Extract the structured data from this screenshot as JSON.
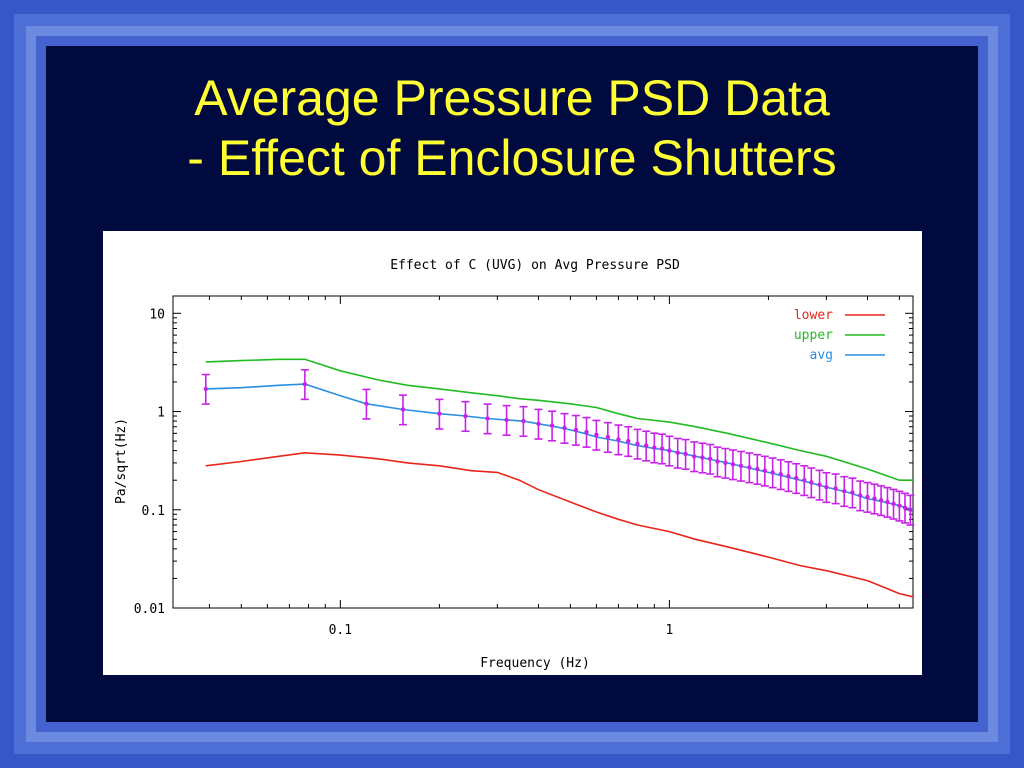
{
  "slide": {
    "title_line1": "Average Pressure PSD Data",
    "title_line2": "- Effect of Enclosure Shutters"
  },
  "colors": {
    "title": "#ffff33",
    "lower": "#e8261c",
    "upper": "#22bb22",
    "avg": "#2b8fe0",
    "errorbars": "#c822e8"
  },
  "chart_data": {
    "type": "line",
    "title": "Effect of C (UVG) on Avg Pressure PSD",
    "xlabel": "Frequency (Hz)",
    "ylabel": "Pa/sqrt(Hz)",
    "xscale": "log",
    "yscale": "log",
    "xlim": [
      0.031,
      5.5
    ],
    "ylim": [
      0.01,
      15
    ],
    "x_ticks": [
      {
        "value": 0.1,
        "label": "0.1"
      },
      {
        "value": 1,
        "label": "1"
      }
    ],
    "y_ticks": [
      {
        "value": 10,
        "label": "10"
      },
      {
        "value": 1,
        "label": "1"
      },
      {
        "value": 0.1,
        "label": "0.1"
      },
      {
        "value": 0.01,
        "label": "0.01"
      }
    ],
    "legend_position": "top-right",
    "series": [
      {
        "name": "lower",
        "x": [
          0.039,
          0.05,
          0.065,
          0.078,
          0.1,
          0.13,
          0.16,
          0.2,
          0.25,
          0.3,
          0.35,
          0.4,
          0.5,
          0.6,
          0.7,
          0.8,
          1.0,
          1.2,
          1.5,
          2.0,
          2.5,
          3.0,
          4.0,
          5.0,
          5.5
        ],
        "y": [
          0.28,
          0.31,
          0.35,
          0.38,
          0.36,
          0.33,
          0.3,
          0.28,
          0.25,
          0.24,
          0.2,
          0.16,
          0.12,
          0.095,
          0.08,
          0.07,
          0.06,
          0.05,
          0.042,
          0.033,
          0.027,
          0.024,
          0.019,
          0.014,
          0.013
        ]
      },
      {
        "name": "upper",
        "x": [
          0.039,
          0.05,
          0.065,
          0.078,
          0.1,
          0.13,
          0.16,
          0.2,
          0.25,
          0.3,
          0.35,
          0.4,
          0.5,
          0.6,
          0.7,
          0.8,
          1.0,
          1.2,
          1.5,
          2.0,
          2.5,
          3.0,
          4.0,
          5.0,
          5.5
        ],
        "y": [
          3.2,
          3.3,
          3.4,
          3.4,
          2.6,
          2.1,
          1.85,
          1.7,
          1.55,
          1.45,
          1.35,
          1.3,
          1.2,
          1.1,
          0.95,
          0.85,
          0.78,
          0.7,
          0.6,
          0.48,
          0.4,
          0.35,
          0.26,
          0.2,
          0.2
        ]
      },
      {
        "name": "avg",
        "x": [
          0.039,
          0.05,
          0.065,
          0.078,
          0.1,
          0.12,
          0.155,
          0.2,
          0.24,
          0.28,
          0.32,
          0.36,
          0.4,
          0.45,
          0.5,
          0.55,
          0.6,
          0.7,
          0.8,
          0.9,
          1.0,
          1.2,
          1.5,
          1.8,
          2.0,
          2.5,
          3.0,
          3.5,
          4.0,
          4.5,
          5.0,
          5.5
        ],
        "y": [
          1.7,
          1.75,
          1.85,
          1.9,
          1.45,
          1.2,
          1.05,
          0.95,
          0.9,
          0.85,
          0.82,
          0.8,
          0.75,
          0.7,
          0.65,
          0.6,
          0.55,
          0.5,
          0.45,
          0.42,
          0.4,
          0.35,
          0.3,
          0.26,
          0.24,
          0.2,
          0.17,
          0.15,
          0.13,
          0.12,
          0.11,
          0.1
        ]
      }
    ],
    "error_bars": {
      "x": [
        0.039,
        0.078,
        0.12,
        0.155,
        0.2,
        0.24,
        0.28,
        0.32,
        0.36,
        0.4,
        0.44,
        0.48,
        0.52,
        0.56,
        0.6,
        0.65,
        0.7,
        0.75,
        0.8,
        0.85,
        0.9,
        0.95,
        1.0,
        1.06,
        1.12,
        1.19,
        1.26,
        1.33,
        1.4,
        1.48,
        1.56,
        1.65,
        1.75,
        1.85,
        1.95,
        2.06,
        2.18,
        2.3,
        2.43,
        2.57,
        2.7,
        2.86,
        3.0,
        3.2,
        3.4,
        3.6,
        3.8,
        4.0,
        4.2,
        4.4,
        4.6,
        4.8,
        5.0,
        5.2,
        5.4
      ],
      "y": [
        1.7,
        1.9,
        1.2,
        1.05,
        0.95,
        0.9,
        0.85,
        0.82,
        0.8,
        0.75,
        0.72,
        0.68,
        0.65,
        0.62,
        0.58,
        0.55,
        0.52,
        0.5,
        0.47,
        0.45,
        0.43,
        0.42,
        0.4,
        0.38,
        0.37,
        0.35,
        0.34,
        0.33,
        0.31,
        0.3,
        0.29,
        0.28,
        0.27,
        0.26,
        0.25,
        0.24,
        0.23,
        0.22,
        0.21,
        0.2,
        0.19,
        0.18,
        0.17,
        0.165,
        0.155,
        0.15,
        0.14,
        0.135,
        0.13,
        0.125,
        0.12,
        0.115,
        0.11,
        0.105,
        0.1
      ],
      "rel_low": 0.7,
      "rel_high": 1.4
    }
  }
}
